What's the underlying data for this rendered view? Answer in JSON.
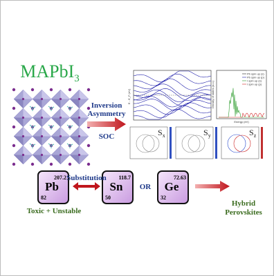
{
  "title": {
    "main": "MAPbI",
    "sub": "3"
  },
  "process": {
    "asymmetry": [
      "Inversion",
      "Asymmetry"
    ],
    "soc": "SOC"
  },
  "band_plot": {
    "y_label": "E - E_F (eV)"
  },
  "dos_plot": {
    "y_label": "Density of states (a.u.)",
    "x_label": "Energy (eV)",
    "legend": [
      "Pb spin up (s)",
      "Pb spin up (p)",
      "I spin up (s)",
      "I spin up (p)"
    ]
  },
  "spin_textures": [
    {
      "symbol": "S",
      "sub": "x"
    },
    {
      "symbol": "S",
      "sub": "y"
    },
    {
      "symbol": "S",
      "sub": "z"
    }
  ],
  "substitution": "Substitution",
  "or": "OR",
  "elements": [
    {
      "symbol": "Pb",
      "number": "82",
      "mass": "207.2"
    },
    {
      "symbol": "Sn",
      "number": "50",
      "mass": "118.7"
    },
    {
      "symbol": "Ge",
      "number": "32",
      "mass": "72.63"
    }
  ],
  "pb_note": "Toxic + Unstable",
  "result": [
    "Hybrid",
    "Perovskites"
  ]
}
